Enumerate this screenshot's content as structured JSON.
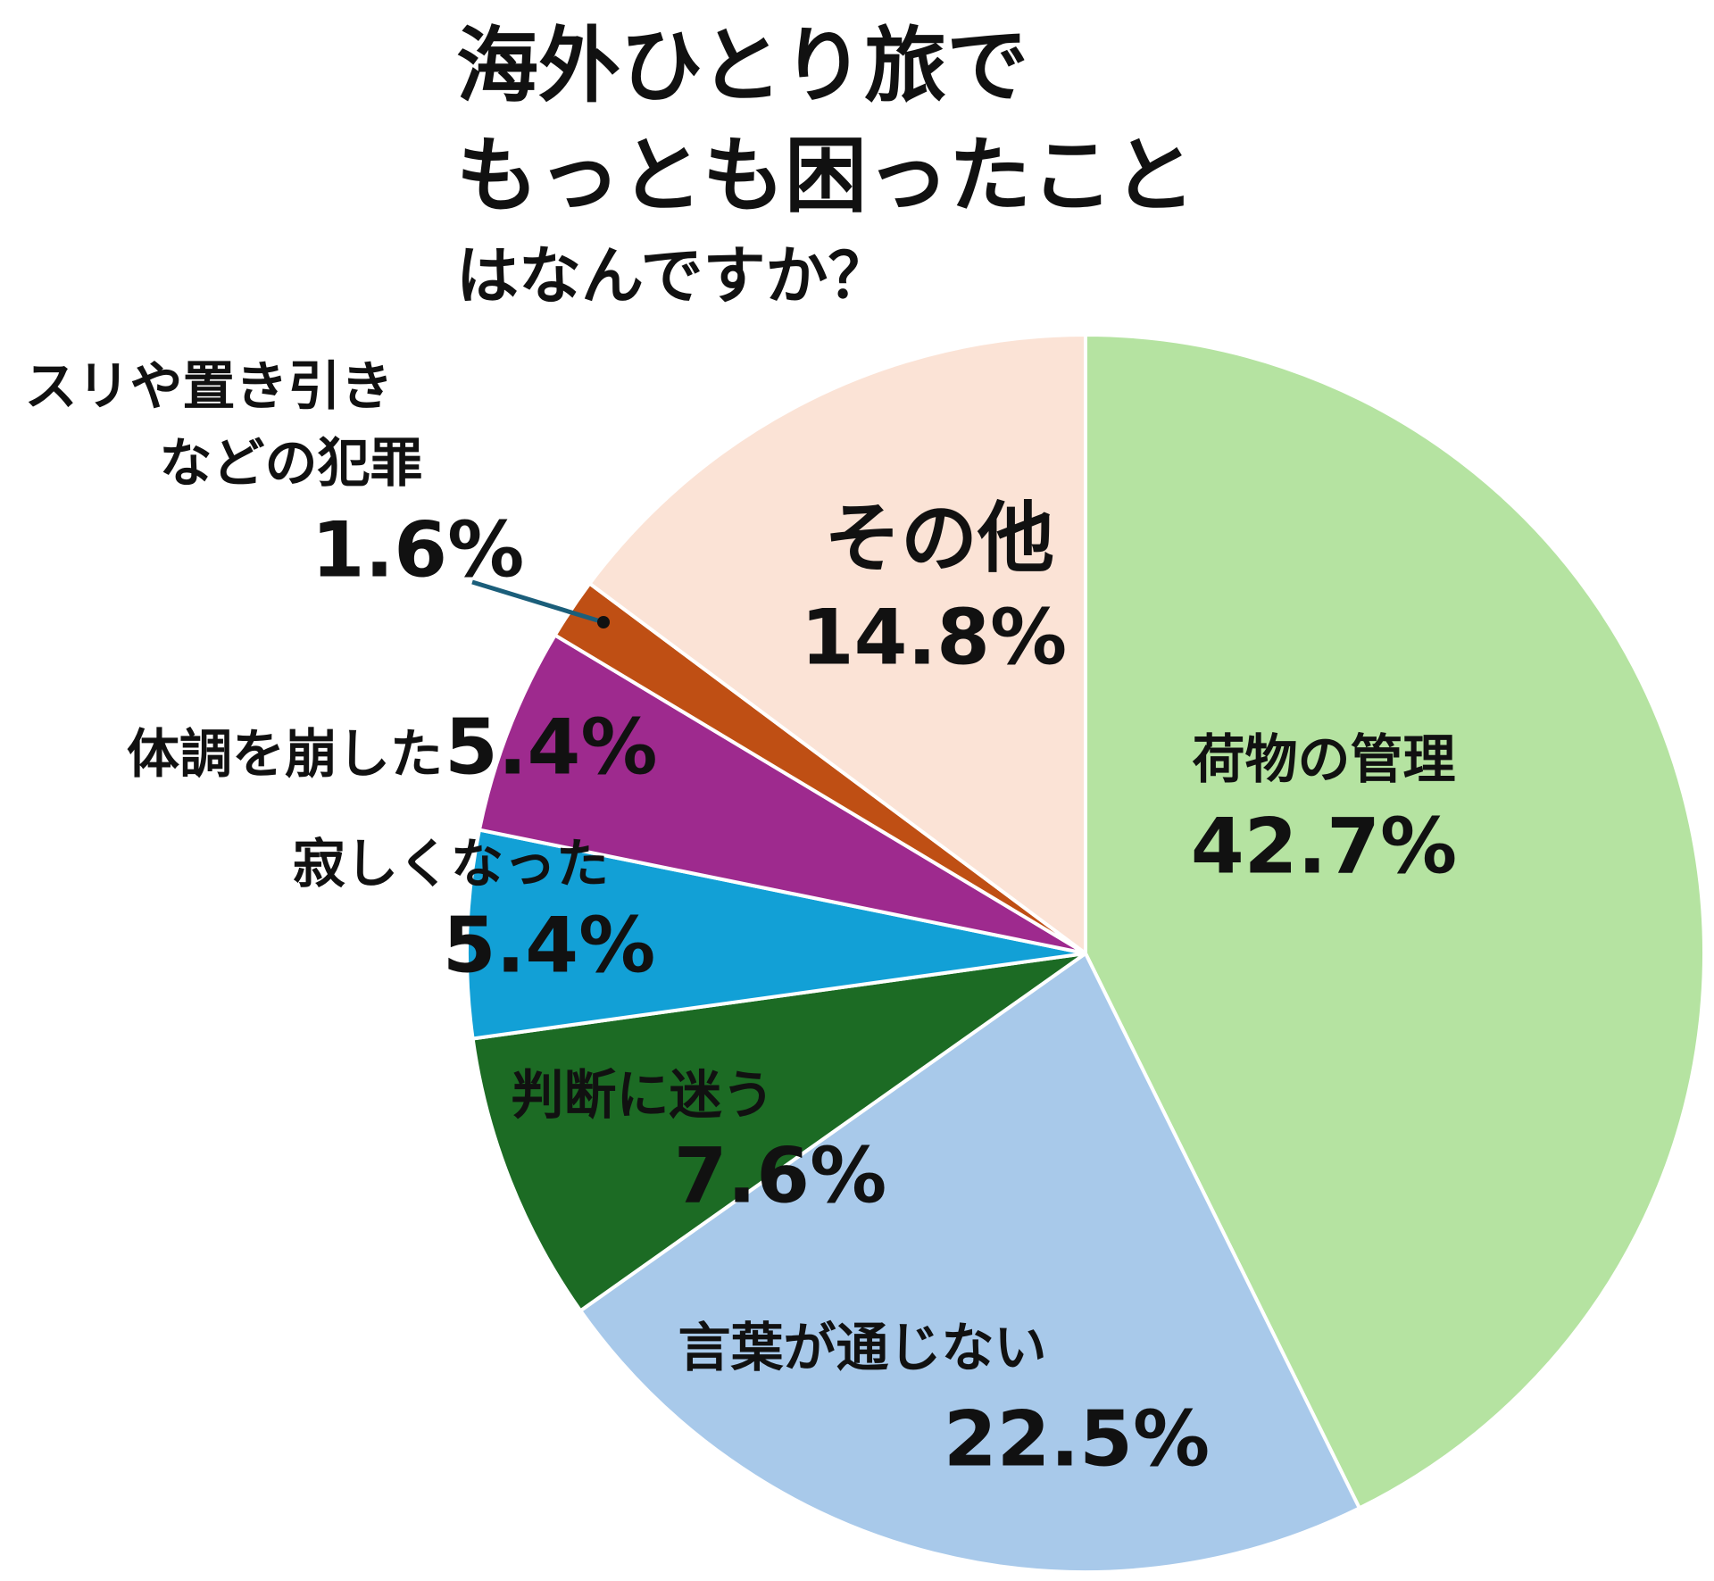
{
  "chart_data": {
    "type": "pie",
    "title_lines": [
      "海外ひとり旅で",
      "もっとも困ったこと",
      "はなんですか？"
    ],
    "categories": [
      [
        "荷物の管理"
      ],
      [
        "言葉が通じない"
      ],
      [
        "判断に迷う"
      ],
      [
        "寂しくなった"
      ],
      [
        "体調を崩した"
      ],
      [
        "スリや置き引き",
        "などの犯罪"
      ],
      [
        "その他"
      ]
    ],
    "values": [
      42.7,
      22.5,
      7.6,
      5.4,
      5.4,
      1.6,
      14.8
    ],
    "value_labels": [
      "42.7%",
      "22.5%",
      "7.6%",
      "5.4%",
      "5.4%",
      "1.6%",
      "14.8%"
    ],
    "colors": [
      "#b5e3a1",
      "#a8c9ea",
      "#1c6b24",
      "#12a0d6",
      "#9e2a8e",
      "#bf4f14",
      "#fbe3d6"
    ]
  }
}
